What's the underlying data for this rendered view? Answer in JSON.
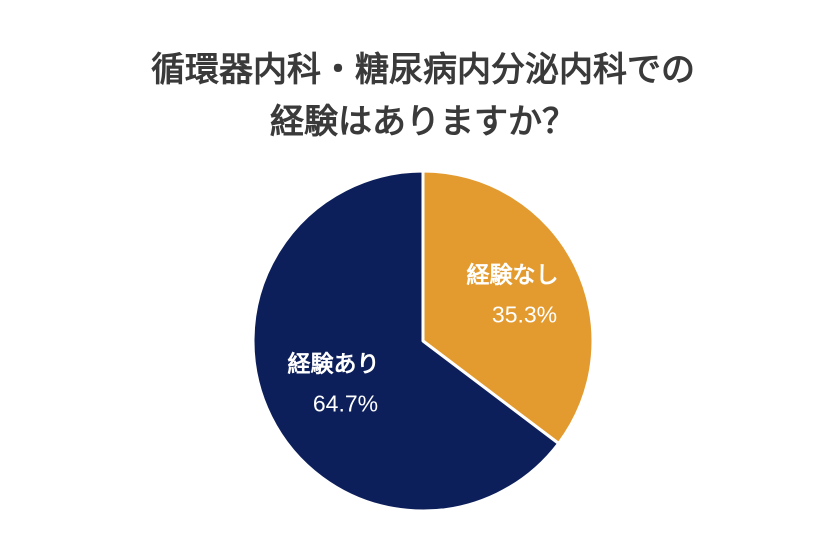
{
  "chart_data": {
    "type": "pie",
    "title": [
      "循環器内科・糖尿病内分泌内科での",
      "経験はありますか？"
    ],
    "categories": [
      "経験なし",
      "経験あり"
    ],
    "values": [
      35.3,
      64.7
    ],
    "value_labels": [
      "35.3%",
      "64.7%"
    ],
    "colors": [
      "#e39b2f",
      "#0c1f5b"
    ]
  }
}
